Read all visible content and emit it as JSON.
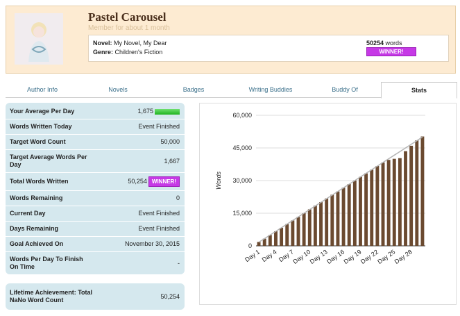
{
  "header": {
    "name": "Pastel Carousel",
    "member_since": "Member for about 1 month",
    "novel_label": "Novel:",
    "novel": "My Novel, My Dear",
    "genre_label": "Genre:",
    "genre": "Children's Fiction",
    "word_count": "50254",
    "word_unit": "words",
    "badge": "WINNER!"
  },
  "tabs": [
    "Author Info",
    "Novels",
    "Badges",
    "Writing Buddies",
    "Buddy Of",
    "Stats"
  ],
  "active_tab": "Stats",
  "stats": {
    "rows": [
      {
        "label": "Your Average Per Day",
        "value": "1,675",
        "progress_bar": true
      },
      {
        "label": "Words Written Today",
        "value": "Event Finished"
      },
      {
        "label": "Target Word Count",
        "value": "50,000"
      },
      {
        "label": "Target Average Words Per Day",
        "value": "1,667"
      },
      {
        "label": "Total Words Written",
        "value": "50,254",
        "badge": "WINNER!"
      },
      {
        "label": "Words Remaining",
        "value": "0"
      },
      {
        "label": "Current Day",
        "value": "Event Finished"
      },
      {
        "label": "Days Remaining",
        "value": "Event Finished"
      },
      {
        "label": "Goal Achieved On",
        "value": "November 30, 2015"
      },
      {
        "label": "Words Per Day To Finish On Time",
        "value": "-"
      }
    ],
    "lifetime": {
      "label": "Lifetime Achievement: Total NaNo Word Count",
      "value": "50,254"
    }
  },
  "chart_data": {
    "type": "bar",
    "y_label": "Words",
    "categories": [
      "Day 1",
      null,
      null,
      "Day 4",
      null,
      null,
      "Day 7",
      null,
      null,
      "Day 10",
      null,
      null,
      "Day 13",
      null,
      null,
      "Day 16",
      null,
      null,
      "Day 19",
      null,
      null,
      "Day 22",
      null,
      null,
      "Day 25",
      null,
      null,
      "Day 28",
      null,
      null
    ],
    "series": [
      {
        "color": "#6b4a30",
        "values": [
          1800,
          3300,
          5000,
          6700,
          8300,
          10000,
          11700,
          13300,
          15000,
          16800,
          18500,
          20100,
          21800,
          23500,
          25000,
          26700,
          28400,
          30000,
          31700,
          33300,
          35000,
          36700,
          38300,
          39500,
          40000,
          40300,
          43500,
          46000,
          48500,
          50254
        ]
      },
      {
        "color": "#b5b5b5",
        "type": "line",
        "values": [
          1667,
          3333,
          5000,
          6667,
          8333,
          10000,
          11667,
          13333,
          15000,
          16667,
          18333,
          20000,
          21667,
          23333,
          25000,
          26667,
          28333,
          30000,
          31667,
          33333,
          35000,
          36667,
          38333,
          40000,
          41667,
          43333,
          45000,
          46667,
          48333,
          50000
        ]
      }
    ],
    "ylim": [
      0,
      60000
    ],
    "yticks": [
      0,
      {
        "value": 15000,
        "label": "15,000"
      },
      {
        "value": 30000,
        "label": "30,000"
      },
      {
        "value": 45000,
        "label": "45,000"
      },
      {
        "value": 60000,
        "label": "60,000"
      }
    ],
    "grid": true
  }
}
